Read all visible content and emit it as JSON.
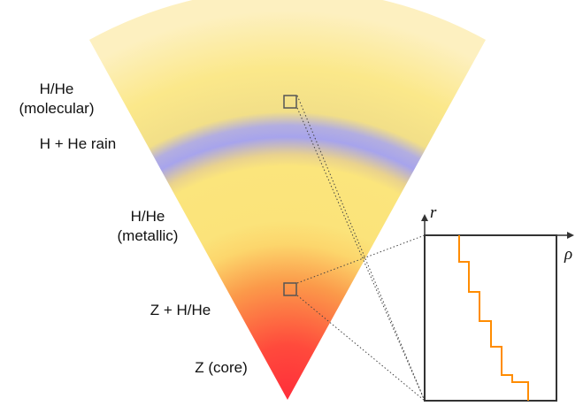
{
  "layers": [
    {
      "id": "molecular",
      "lines": [
        "H/He",
        "(molecular)"
      ]
    },
    {
      "id": "rain",
      "lines": [
        "H + He rain"
      ]
    },
    {
      "id": "metallic",
      "lines": [
        "H/He",
        "(metallic)"
      ]
    },
    {
      "id": "mixed",
      "lines": [
        "Z + H/He"
      ]
    },
    {
      "id": "core",
      "lines": [
        "Z (core)"
      ]
    }
  ],
  "inset": {
    "y_axis_label": "r",
    "x_axis_label": "ρ",
    "profile": "staircase",
    "steps": 5
  },
  "colors": {
    "envelope": "#fbe67a",
    "rain_band": "#a8a8f0",
    "core": "#ff3a3a",
    "density_profile": "#ff8c00",
    "frame": "#333333"
  }
}
